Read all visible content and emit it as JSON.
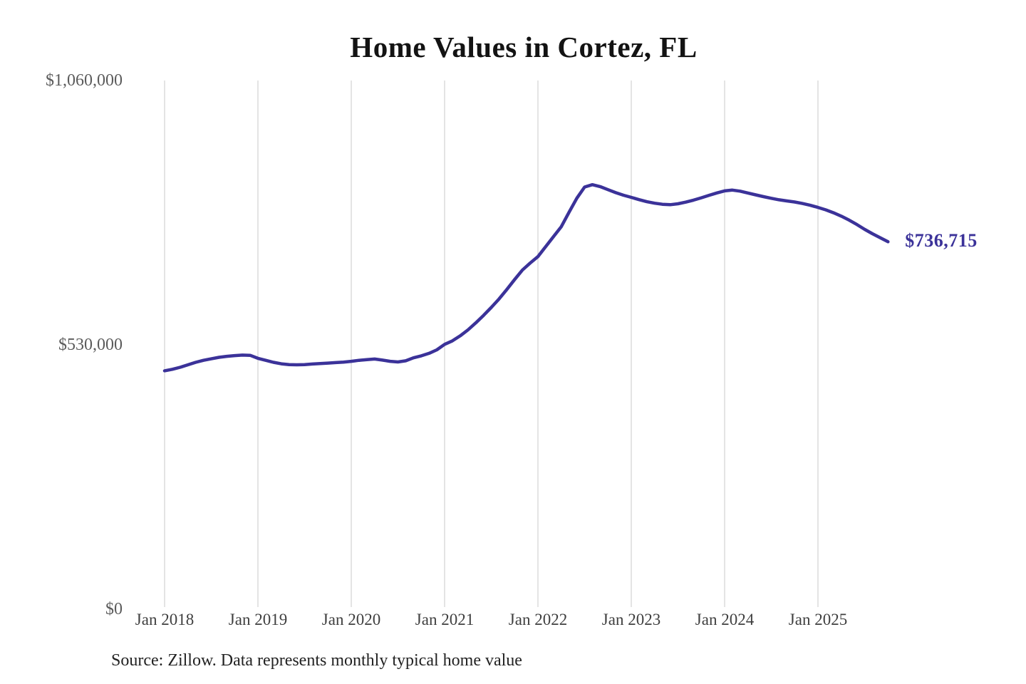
{
  "title": "Home Values in Cortez, FL",
  "source_note": "Source: Zillow. Data represents monthly typical home value",
  "colors": {
    "line": "#3b3299",
    "grid": "#c9c9c9",
    "title_text": "#131313",
    "y_axis_text": "#5b5b5b",
    "x_axis_text": "#3f3f3f",
    "source_text": "#222222",
    "background": "#ffffff"
  },
  "chart_data": {
    "type": "line",
    "title": "Home Values in Cortez, FL",
    "xlabel": "",
    "ylabel": "",
    "ylim": [
      0,
      1060000
    ],
    "grid": "vertical-only",
    "legend": "none",
    "x_frequency": "monthly",
    "x_start": "Jan 2018",
    "x_end": "Oct 2025",
    "xtick_labels": [
      "Jan 2018",
      "Jan 2019",
      "Jan 2020",
      "Jan 2021",
      "Jan 2022",
      "Jan 2023",
      "Jan 2024",
      "Jan 2025"
    ],
    "ytick_labels": [
      {
        "label": "$1,060,000",
        "value": 1060000
      },
      {
        "label": "$530,000",
        "value": 530000
      },
      {
        "label": "$0",
        "value": 0
      }
    ],
    "final_value": 736715,
    "final_value_label": "$736,715",
    "series": [
      {
        "name": "Monthly typical home value",
        "values": [
          478000,
          481000,
          485000,
          490000,
          495000,
          499000,
          502000,
          505000,
          507000,
          508500,
          509500,
          509000,
          503000,
          499000,
          495000,
          492000,
          490500,
          490000,
          490500,
          491500,
          492500,
          493500,
          494500,
          495500,
          497000,
          499000,
          500500,
          501500,
          499500,
          497000,
          495700,
          498000,
          504000,
          508000,
          513000,
          520000,
          531000,
          538000,
          548000,
          560000,
          574000,
          589000,
          605000,
          622000,
          641000,
          661000,
          680000,
          694000,
          707000,
          727000,
          747000,
          767000,
          796000,
          824000,
          846500,
          851200,
          847300,
          841200,
          835100,
          830000,
          825700,
          821100,
          817000,
          814000,
          811900,
          811000,
          812800,
          816100,
          820200,
          824900,
          829900,
          834600,
          838700,
          840300,
          838100,
          834400,
          830700,
          827200,
          823800,
          820900,
          818600,
          816500,
          813400,
          809900,
          805600,
          800700,
          794800,
          788000,
          780200,
          771300,
          761500,
          752800,
          744900,
          736715
        ]
      }
    ]
  }
}
